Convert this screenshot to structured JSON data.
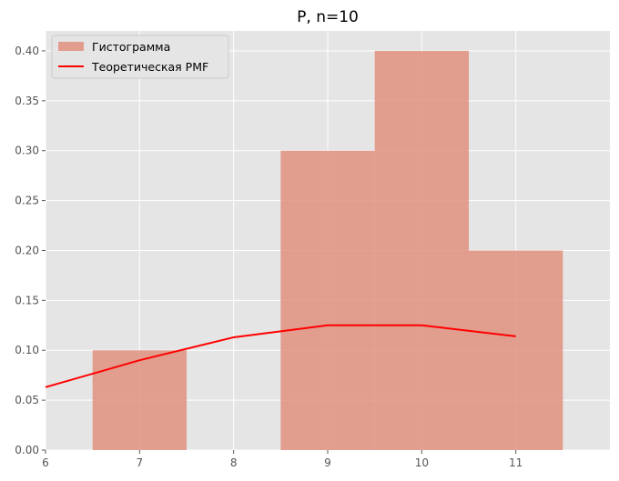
{
  "chart_data": {
    "type": "bar",
    "title": "P, n=10",
    "xlabel": "",
    "ylabel": "",
    "xlim": [
      6,
      12
    ],
    "ylim": [
      0,
      0.42
    ],
    "xticks": [
      "6",
      "7",
      "8",
      "9",
      "10",
      "11"
    ],
    "yticks": [
      "0.00",
      "0.05",
      "0.10",
      "0.15",
      "0.20",
      "0.25",
      "0.30",
      "0.35",
      "0.40"
    ],
    "grid": true,
    "legend_position": "top-left",
    "histogram": {
      "name": "Гистограмма",
      "color": "#e0907f",
      "bins": [
        {
          "x0": 6.5,
          "x1": 7.5,
          "value": 0.1
        },
        {
          "x0": 8.5,
          "x1": 9.5,
          "value": 0.3
        },
        {
          "x0": 9.5,
          "x1": 10.5,
          "value": 0.4
        },
        {
          "x0": 10.5,
          "x1": 11.5,
          "value": 0.2
        }
      ]
    },
    "line": {
      "name": "Теоретическая PMF",
      "color": "#ff0000",
      "x": [
        6,
        7,
        8,
        9,
        10,
        11
      ],
      "y": [
        0.063,
        0.09,
        0.113,
        0.125,
        0.125,
        0.114
      ]
    }
  }
}
